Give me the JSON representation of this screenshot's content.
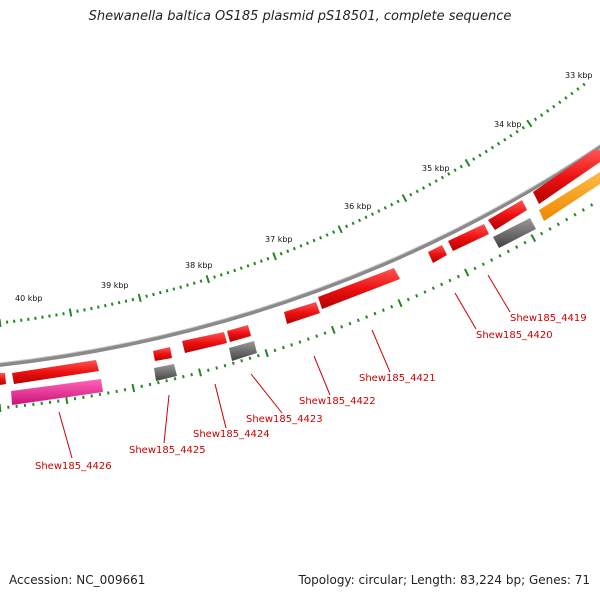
{
  "title": "Shewanella baltica OS185 plasmid pS18501, complete sequence",
  "footer": {
    "accession": "Accession: NC_009661",
    "stats": "Topology: circular; Length: 83,224 bp; Genes: 71"
  },
  "kbp_labels": [
    "33 kbp",
    "34 kbp",
    "35 kbp",
    "36 kbp",
    "37 kbp",
    "38 kbp",
    "39 kbp",
    "40 kbp"
  ],
  "gene_labels": [
    "Shew185_4419",
    "Shew185_4420",
    "Shew185_4421",
    "Shew185_4422",
    "Shew185_4423",
    "Shew185_4424",
    "Shew185_4425",
    "Shew185_4426"
  ],
  "colors": {
    "backbone": "#8a8a8a",
    "cds": "#ee1111",
    "other_gene": "#666666",
    "pink_feature": "#ee2288",
    "orange_feature": "#ff9900",
    "tick": "#228822",
    "gene_label": "#cc0000"
  }
}
